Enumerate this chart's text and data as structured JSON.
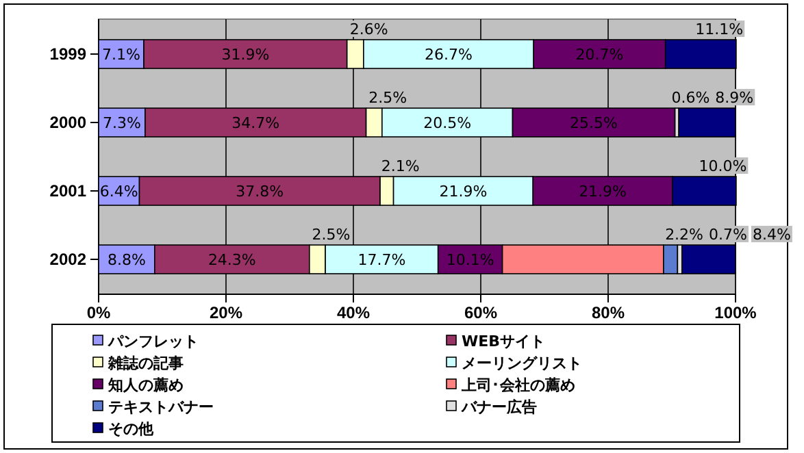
{
  "chart_data": {
    "type": "bar",
    "orientation": "horizontal",
    "stacked": true,
    "categories": [
      "1999",
      "2000",
      "2001",
      "2002"
    ],
    "xlim": [
      0,
      100
    ],
    "xticks": [
      {
        "value": 0,
        "label": "0%"
      },
      {
        "value": 20,
        "label": "20%"
      },
      {
        "value": 40,
        "label": "40%"
      },
      {
        "value": 60,
        "label": "60%"
      },
      {
        "value": 80,
        "label": "80%"
      },
      {
        "value": 100,
        "label": "100%"
      }
    ],
    "grid": "x",
    "legend": "bottom",
    "series": [
      {
        "name": "パンフレット",
        "color": "#9999ff",
        "values": [
          7.1,
          7.3,
          6.4,
          8.8
        ],
        "value_labels": [
          "7.1%",
          "7.3%",
          "6.4%",
          "8.8%"
        ]
      },
      {
        "name": "WEBサイト",
        "color": "#993366",
        "values": [
          31.9,
          34.7,
          37.8,
          24.3
        ],
        "value_labels": [
          "31.9%",
          "34.7%",
          "37.8%",
          "24.3%"
        ]
      },
      {
        "name": "雑誌の記事",
        "color": "#ffffcc",
        "values": [
          2.6,
          2.5,
          2.1,
          2.5
        ],
        "value_labels": [
          "2.6%",
          "2.5%",
          "2.1%",
          "2.5%"
        ]
      },
      {
        "name": "メーリングリスト",
        "color": "#ccffff",
        "values": [
          26.7,
          20.5,
          21.9,
          17.7
        ],
        "value_labels": [
          "26.7%",
          "20.5%",
          "21.9%",
          "17.7%"
        ]
      },
      {
        "name": "知人の薦め",
        "color": "#660066",
        "values": [
          20.7,
          25.5,
          21.9,
          10.1
        ],
        "value_labels": [
          "20.7%",
          "25.5%",
          "21.9%",
          "10.1%"
        ]
      },
      {
        "name": "上司･会社の薦め",
        "color": "#ff8080",
        "values": [
          null,
          null,
          null,
          25.3
        ],
        "value_labels": [
          null,
          null,
          null,
          null
        ]
      },
      {
        "name": "テキストバナー",
        "color": "#5b7bd0",
        "values": [
          null,
          null,
          null,
          2.2
        ],
        "value_labels": [
          null,
          null,
          null,
          "2.2%"
        ]
      },
      {
        "name": "バナー広告",
        "color": "#e0e0e0",
        "values": [
          null,
          0.6,
          null,
          0.7
        ],
        "value_labels": [
          null,
          "0.6%",
          null,
          "0.7%"
        ]
      },
      {
        "name": "その他",
        "color": "#000080",
        "values": [
          11.1,
          8.9,
          10.0,
          8.4
        ],
        "value_labels": [
          "11.1%",
          "8.9%",
          "10.0%",
          "8.4%"
        ]
      }
    ]
  }
}
